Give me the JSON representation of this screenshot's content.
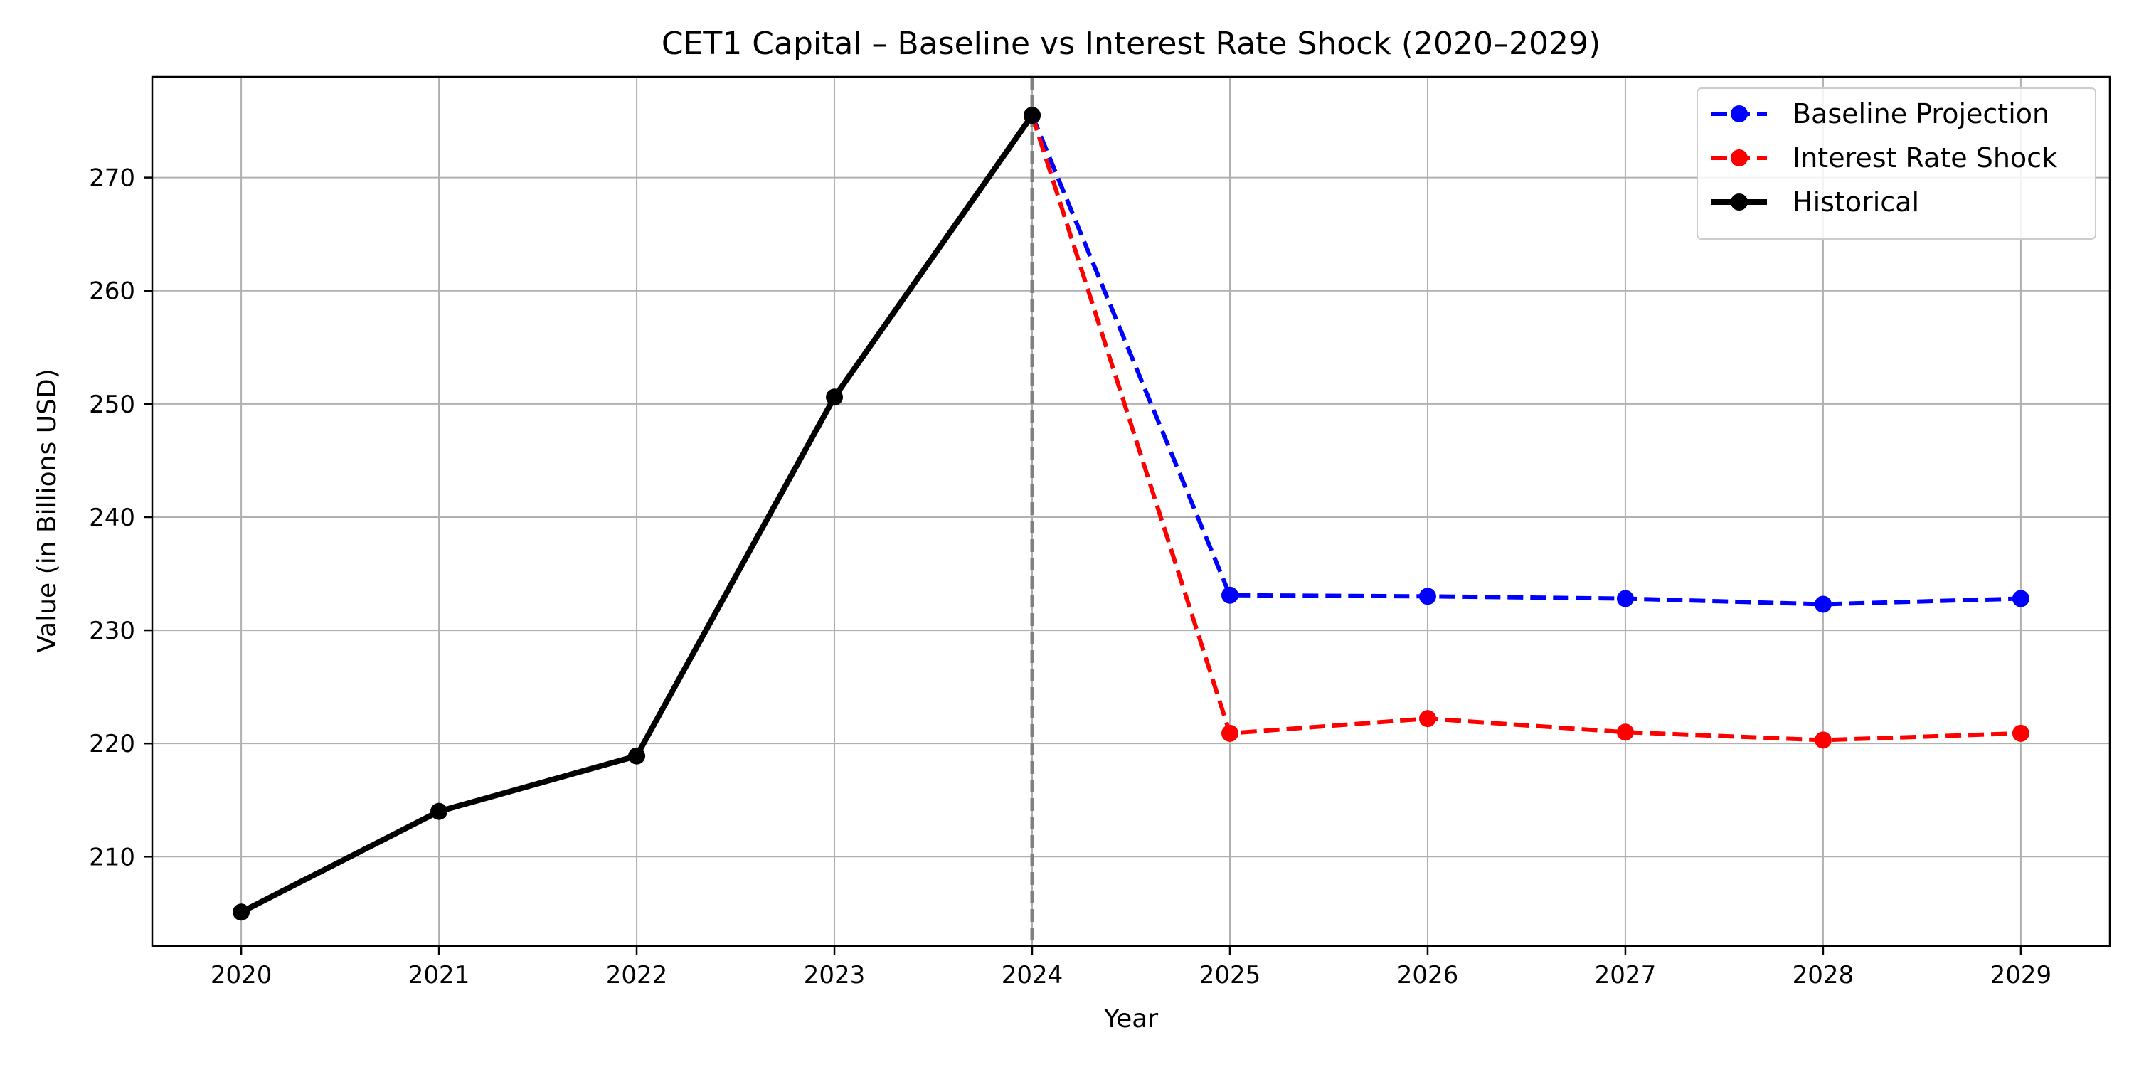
{
  "chart_data": {
    "type": "line",
    "title": "CET1 Capital – Baseline vs Interest Rate Shock (2020–2029)",
    "xlabel": "Year",
    "ylabel": "Value (in Billions USD)",
    "x_ticks": [
      "2020",
      "2021",
      "2022",
      "2023",
      "2024",
      "2025",
      "2026",
      "2027",
      "2028",
      "2029"
    ],
    "y_ticks": [
      "210",
      "220",
      "230",
      "240",
      "250",
      "260",
      "270"
    ],
    "xlim": [
      2019.55,
      2029.45
    ],
    "ylim": [
      202.1,
      278.9
    ],
    "grid": true,
    "legend_position": "top-right",
    "vertical_marker": {
      "x": 2024,
      "color": "#808080",
      "style": "dashed"
    },
    "series": [
      {
        "name": "Baseline Projection",
        "color": "#0000ff",
        "style": "dashed",
        "x": [
          2024,
          2025,
          2026,
          2027,
          2028,
          2029
        ],
        "y": [
          275.5,
          233.1,
          233.0,
          232.8,
          232.3,
          232.8
        ]
      },
      {
        "name": "Interest Rate Shock",
        "color": "#ff0000",
        "style": "dashed",
        "x": [
          2024,
          2025,
          2026,
          2027,
          2028,
          2029
        ],
        "y": [
          275.5,
          220.9,
          222.2,
          221.0,
          220.3,
          220.9
        ]
      },
      {
        "name": "Historical",
        "color": "#000000",
        "style": "solid",
        "x": [
          2020,
          2021,
          2022,
          2023,
          2024
        ],
        "y": [
          205.1,
          214.0,
          218.9,
          250.6,
          275.5
        ]
      }
    ]
  }
}
